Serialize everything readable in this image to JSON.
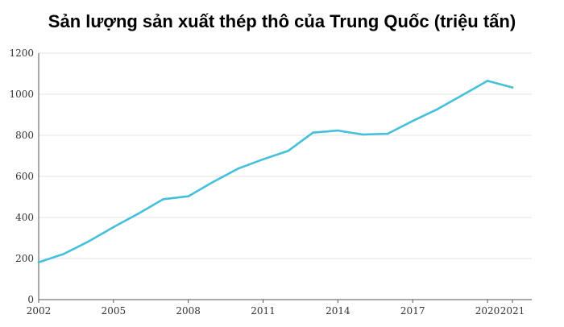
{
  "chart_data": {
    "type": "line",
    "title": "Sản lượng sản xuất thép thô của Trung Quốc (triệu tấn)",
    "xlabel": "",
    "ylabel": "",
    "xlim": [
      2002,
      2021
    ],
    "ylim": [
      0,
      1200
    ],
    "x_ticks": [
      2002,
      2005,
      2008,
      2011,
      2014,
      2017,
      2020,
      2021
    ],
    "y_ticks": [
      0,
      200,
      400,
      600,
      800,
      1000,
      1200
    ],
    "grid": true,
    "colors": {
      "line": "#45c0dc",
      "grid": "#e3e3e3",
      "axis": "#555555",
      "text": "#333333"
    },
    "series": [
      {
        "x": [
          2002,
          2003,
          2004,
          2005,
          2006,
          2007,
          2008,
          2009,
          2010,
          2011,
          2012,
          2013,
          2014,
          2015,
          2016,
          2017,
          2018,
          2019,
          2020,
          2021
        ],
        "values": [
          182,
          222,
          283,
          353,
          419,
          489,
          503,
          573,
          638,
          683,
          724,
          813,
          823,
          804,
          808,
          870,
          928,
          996,
          1065,
          1033
        ]
      }
    ]
  }
}
